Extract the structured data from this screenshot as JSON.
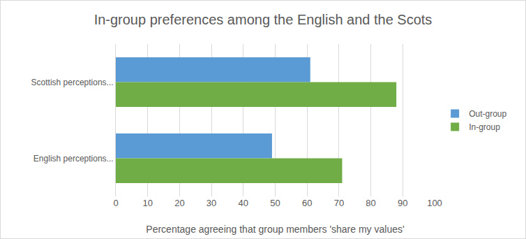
{
  "chart_data": {
    "type": "bar",
    "orientation": "horizontal",
    "title": "In-group preferences among the English and the Scots",
    "x_label": "Percentage agreeing that group members 'share my values'",
    "categories": [
      "Scottish perceptions...",
      "English perceptions..."
    ],
    "series": [
      {
        "name": "Out-group",
        "color": "#5b9bd5",
        "values": [
          61,
          49
        ]
      },
      {
        "name": "In-group",
        "color": "#70ad47",
        "values": [
          88,
          71
        ]
      }
    ],
    "xlim": [
      0,
      100
    ],
    "xticks": [
      0,
      10,
      20,
      30,
      40,
      50,
      60,
      70,
      80,
      90,
      100
    ],
    "grid": true,
    "legend": "right"
  }
}
